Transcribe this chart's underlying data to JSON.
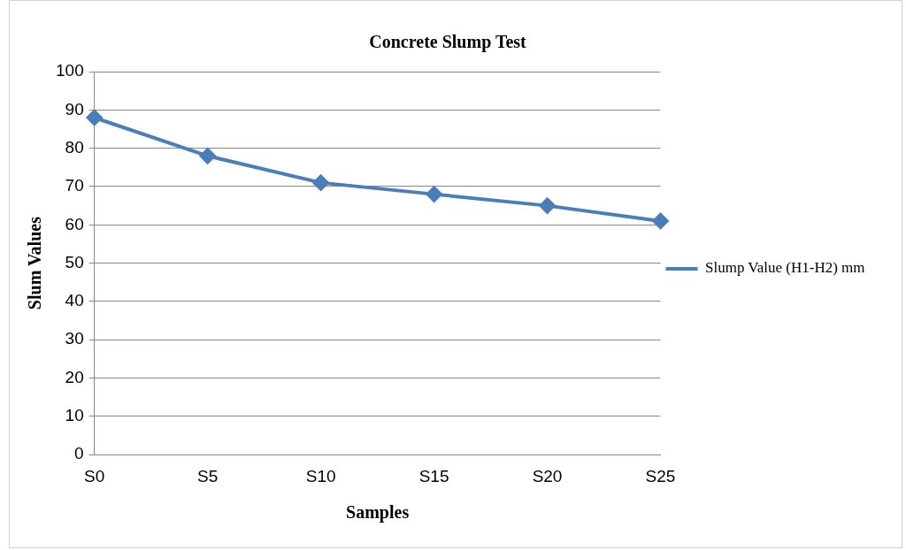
{
  "chart_data": {
    "type": "line",
    "title": "Concrete Slump Test",
    "xlabel": "Samples",
    "ylabel": "Slum Values",
    "categories": [
      "S0",
      "S5",
      "S10",
      "S15",
      "S20",
      "S25"
    ],
    "series": [
      {
        "name": "Slump Value (H1-H2) mm",
        "color": "#4a7ebb",
        "values": [
          88,
          78,
          71,
          68,
          65,
          61
        ]
      }
    ],
    "ylim": [
      0,
      100
    ],
    "yticks": [
      0,
      10,
      20,
      30,
      40,
      50,
      60,
      70,
      80,
      90,
      100
    ],
    "grid": "y",
    "legend": "right",
    "marker": "diamond",
    "line_style": "solid"
  }
}
